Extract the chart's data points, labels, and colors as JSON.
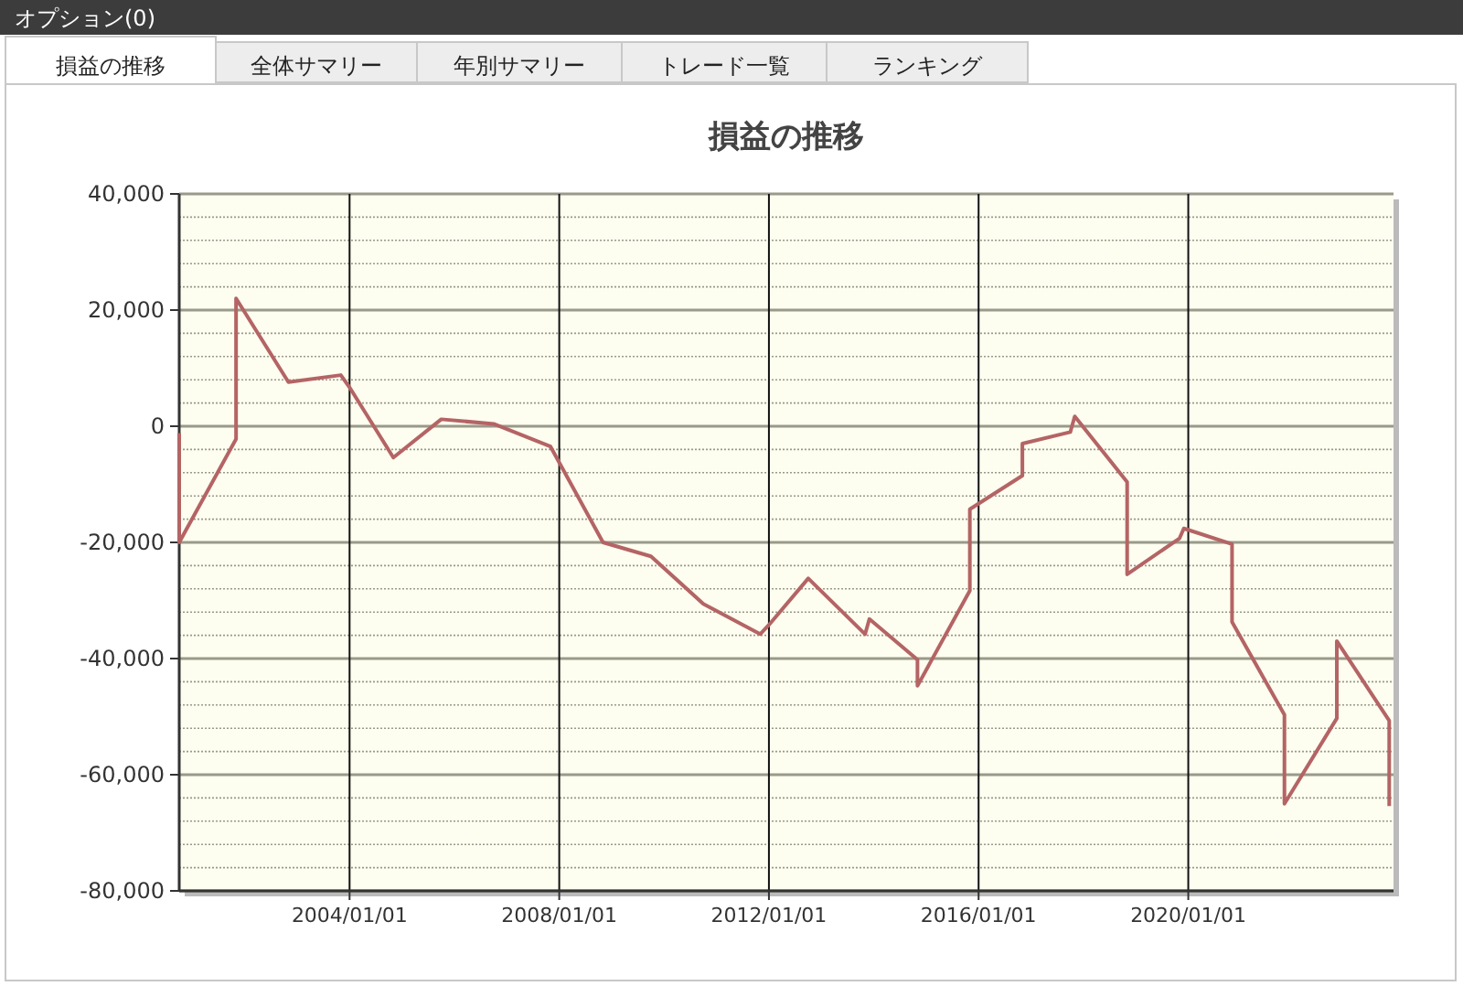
{
  "chart_data": {
    "type": "line",
    "title": "損益の推移",
    "annotations": [
      "オプション(0)",
      "損益の推移",
      "全体サマリー",
      "年別サマリー",
      "トレード一覧",
      "ランキング"
    ],
    "x": [
      "2000-10",
      "2000-10",
      "2001-11",
      "2001-11",
      "2002-11",
      "2003-11",
      "2004-01",
      "2004-11",
      "2005-10",
      "2006-10",
      "2007-11",
      "2008-11",
      "2009-10",
      "2010-10",
      "2011-11",
      "2012-01",
      "2012-10",
      "2013-11",
      "2013-12",
      "2014-11",
      "2014-11",
      "2015-11",
      "2015-11",
      "2016-11",
      "2016-11",
      "2017-10",
      "2017-11",
      "2018-11",
      "2018-11",
      "2019-11",
      "2019-12",
      "2020-11",
      "2020-11",
      "2021-11",
      "2021-11",
      "2022-11",
      "2022-11",
      "2023-11",
      "2023-11"
    ],
    "series": [
      {
        "color": "#b46464",
        "values": [
          -1200,
          -20000,
          -2200,
          22000,
          7600,
          8800,
          6700,
          -5400,
          1200,
          400,
          -3500,
          -20000,
          -22400,
          -30600,
          -35800,
          -34200,
          -26200,
          -35800,
          -33200,
          -40200,
          -44700,
          -28300,
          -14300,
          -8500,
          -3000,
          -1000,
          1700,
          -9600,
          -25500,
          -19300,
          -17600,
          -20300,
          -33700,
          -49700,
          -65000,
          -50300,
          -37000,
          -50700,
          -65400
        ]
      }
    ],
    "xlim": [
      "2000-10",
      "2023-12"
    ],
    "xticks": [
      {
        "value": "2004-01-01",
        "label": "2004/01/01"
      },
      {
        "value": "2008-01-01",
        "label": "2008/01/01"
      },
      {
        "value": "2012-01-01",
        "label": "2012/01/01"
      },
      {
        "value": "2016-01-01",
        "label": "2016/01/01"
      },
      {
        "value": "2020-01-01",
        "label": "2020/01/01"
      }
    ],
    "ylim": [
      -80000,
      40000
    ],
    "yticks": [
      {
        "value": -80000,
        "label": "-80,000"
      },
      {
        "value": -76000,
        "label": null
      },
      {
        "value": -72000,
        "label": null
      },
      {
        "value": -68000,
        "label": null
      },
      {
        "value": -64000,
        "label": null
      },
      {
        "value": -60000,
        "label": "-60,000"
      },
      {
        "value": -56000,
        "label": null
      },
      {
        "value": -52000,
        "label": null
      },
      {
        "value": -48000,
        "label": null
      },
      {
        "value": -44000,
        "label": null
      },
      {
        "value": -40000,
        "label": "-40,000"
      },
      {
        "value": -36000,
        "label": null
      },
      {
        "value": -32000,
        "label": null
      },
      {
        "value": -28000,
        "label": null
      },
      {
        "value": -24000,
        "label": null
      },
      {
        "value": -20000,
        "label": "-20,000"
      },
      {
        "value": -16000,
        "label": null
      },
      {
        "value": -12000,
        "label": null
      },
      {
        "value": -8000,
        "label": null
      },
      {
        "value": -4000,
        "label": null
      },
      {
        "value": 0,
        "label": "0"
      },
      {
        "value": 4000,
        "label": null
      },
      {
        "value": 8000,
        "label": null
      },
      {
        "value": 12000,
        "label": null
      },
      {
        "value": 16000,
        "label": null
      },
      {
        "value": 20000,
        "label": "20,000"
      },
      {
        "value": 24000,
        "label": null
      },
      {
        "value": 28000,
        "label": null
      },
      {
        "value": 32000,
        "label": null
      },
      {
        "value": 36000,
        "label": null
      },
      {
        "value": 40000,
        "label": "40,000"
      }
    ],
    "grid": true,
    "line_style": "solid"
  }
}
